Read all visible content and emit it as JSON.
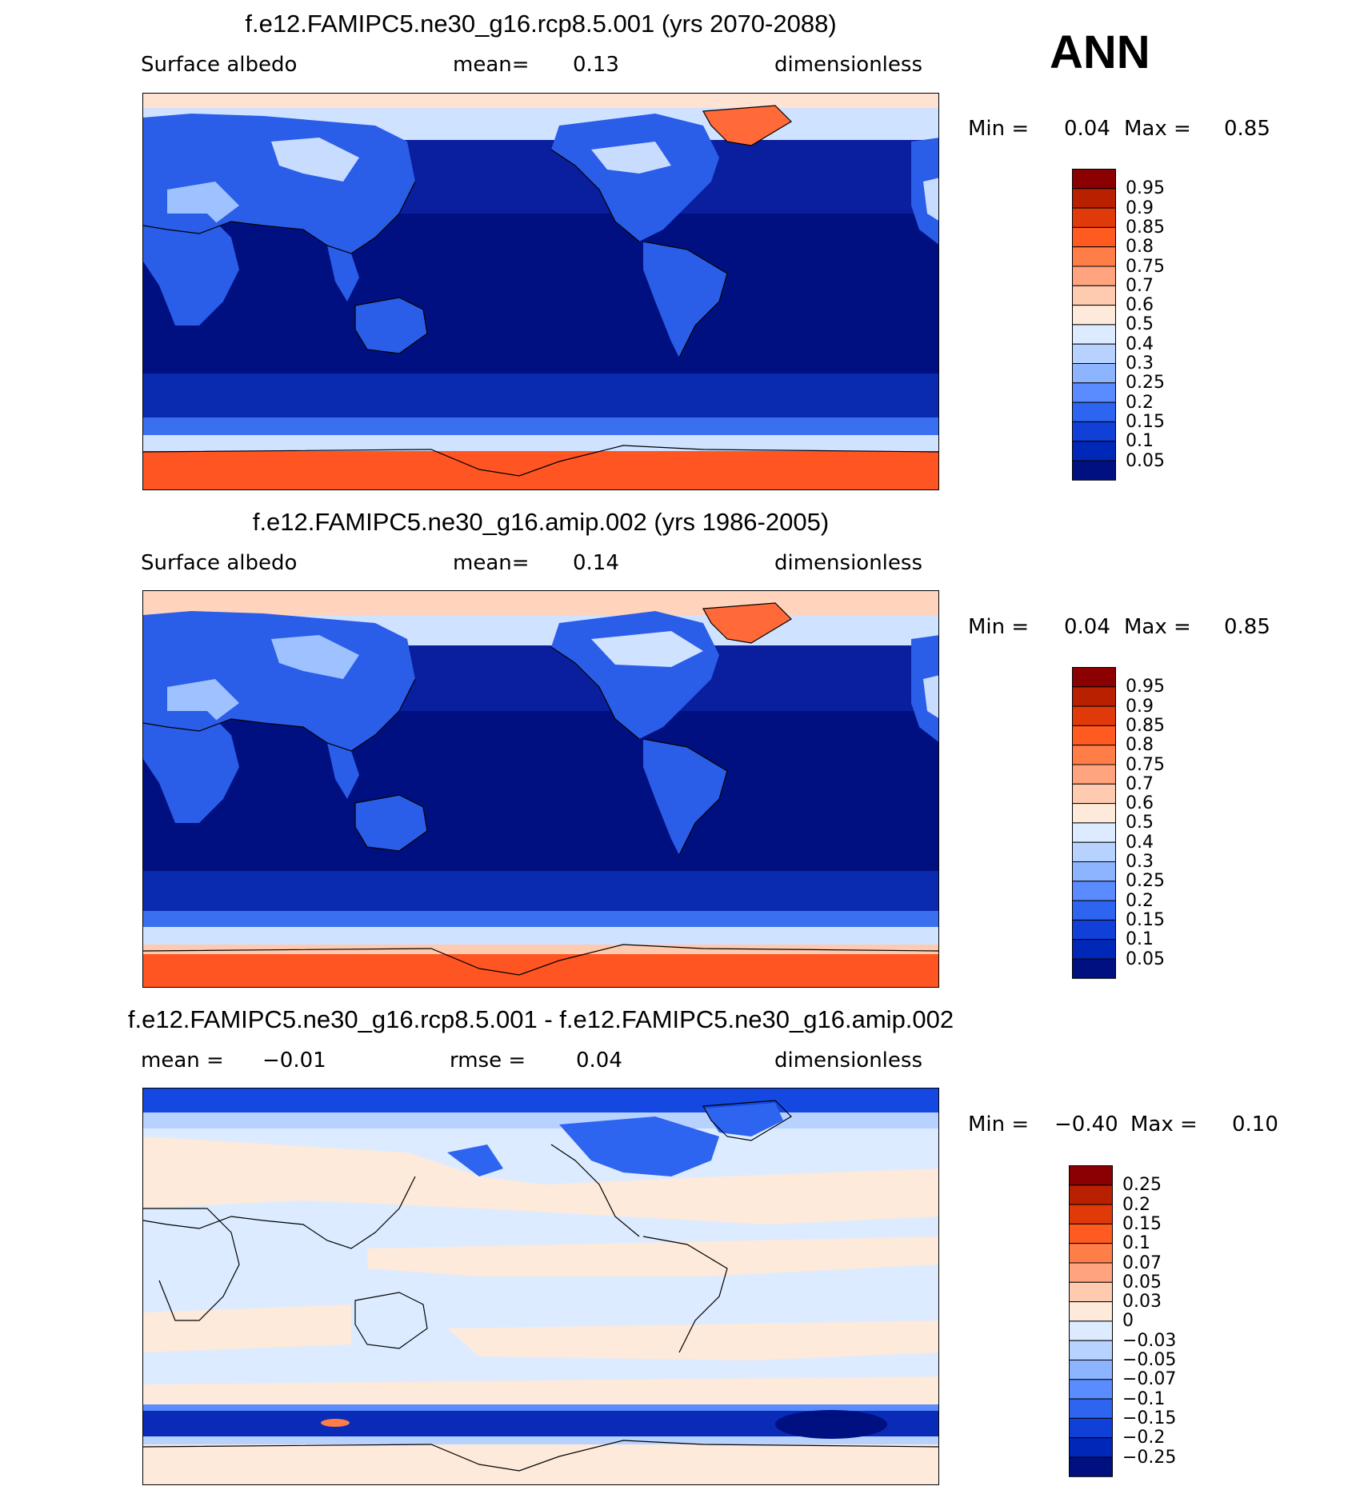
{
  "season": "ANN",
  "panels": [
    {
      "title": "f.e12.FAMIPC5.ne30_g16.rcp8.5.001 (yrs 2070-2088)",
      "left_label": "Surface albedo",
      "mid_label": "mean=",
      "mid_value": "0.13",
      "right_label": "dimensionless",
      "min_label": "Min =",
      "min_value": "0.04",
      "max_label": "Max =",
      "max_value": "0.85",
      "colorbar": {
        "labels": [
          "0.95",
          "0.9",
          "0.85",
          "0.8",
          "0.75",
          "0.7",
          "0.6",
          "0.5",
          "0.4",
          "0.3",
          "0.25",
          "0.2",
          "0.15",
          "0.1",
          "0.05"
        ],
        "colors": [
          "#8b0000",
          "#b82000",
          "#e03a0a",
          "#ff5a20",
          "#ff7e48",
          "#ffa47e",
          "#ffcbb0",
          "#fdeada",
          "#dcebff",
          "#b8d2ff",
          "#8cb4ff",
          "#5a8cff",
          "#2d64f0",
          "#1040d8",
          "#0028b8",
          "#001080"
        ]
      }
    },
    {
      "title": "f.e12.FAMIPC5.ne30_g16.amip.002 (yrs 1986-2005)",
      "left_label": "Surface albedo",
      "mid_label": "mean=",
      "mid_value": "0.14",
      "right_label": "dimensionless",
      "min_label": "Min =",
      "min_value": "0.04",
      "max_label": "Max =",
      "max_value": "0.85",
      "colorbar": {
        "labels": [
          "0.95",
          "0.9",
          "0.85",
          "0.8",
          "0.75",
          "0.7",
          "0.6",
          "0.5",
          "0.4",
          "0.3",
          "0.25",
          "0.2",
          "0.15",
          "0.1",
          "0.05"
        ],
        "colors": [
          "#8b0000",
          "#b82000",
          "#e03a0a",
          "#ff5a20",
          "#ff7e48",
          "#ffa47e",
          "#ffcbb0",
          "#fdeada",
          "#dcebff",
          "#b8d2ff",
          "#8cb4ff",
          "#5a8cff",
          "#2d64f0",
          "#1040d8",
          "#0028b8",
          "#001080"
        ]
      }
    },
    {
      "title": "f.e12.FAMIPC5.ne30_g16.rcp8.5.001 - f.e12.FAMIPC5.ne30_g16.amip.002",
      "left_label": "mean =",
      "left_value": "−0.01",
      "mid_label": "rmse =",
      "mid_value": "0.04",
      "right_label": "dimensionless",
      "min_label": "Min =",
      "min_value": "−0.40",
      "max_label": "Max =",
      "max_value": "0.10",
      "colorbar": {
        "labels": [
          "0.25",
          "0.2",
          "0.15",
          "0.1",
          "0.07",
          "0.05",
          "0.03",
          "0",
          "−0.03",
          "−0.05",
          "−0.07",
          "−0.1",
          "−0.15",
          "−0.2",
          "−0.25"
        ],
        "colors": [
          "#8b0000",
          "#b82000",
          "#e03a0a",
          "#ff5a20",
          "#ff7e48",
          "#ffa47e",
          "#ffcbb0",
          "#fdeada",
          "#dcebff",
          "#b8d2ff",
          "#8cb4ff",
          "#5a8cff",
          "#2d64f0",
          "#1040d8",
          "#0028b8",
          "#001080"
        ]
      }
    }
  ]
}
